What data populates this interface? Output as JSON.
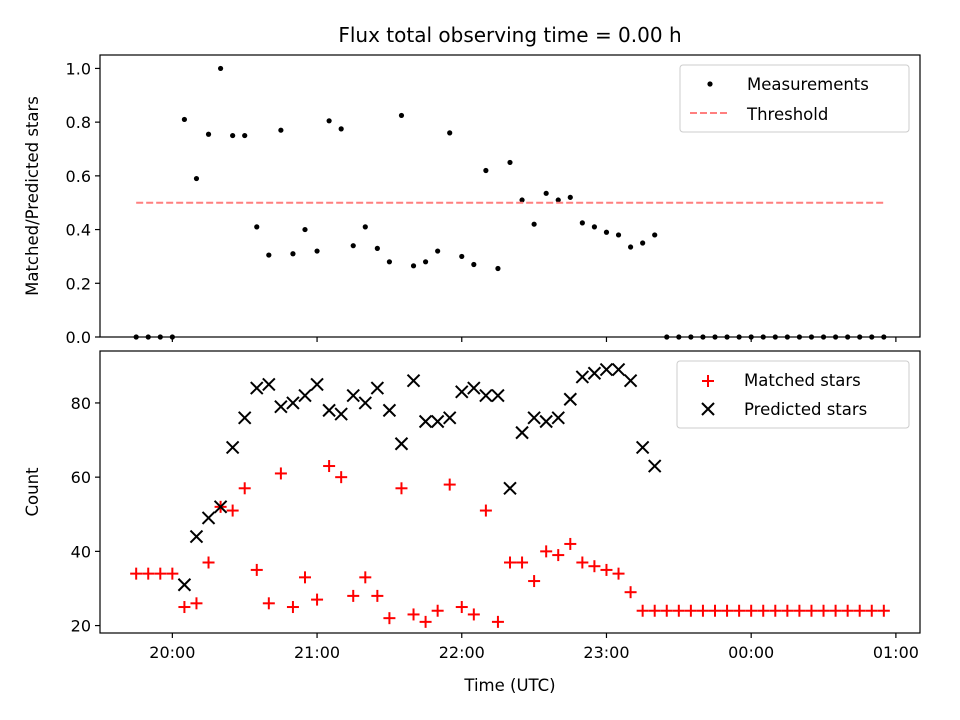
{
  "figure": {
    "title": "Flux total observing time = 0.00 h"
  },
  "chart_data": [
    {
      "type": "scatter",
      "ylabel": "Matched/Predicted stars",
      "xlabel": "",
      "ylim": [
        0.0,
        1.05
      ],
      "yticks": [
        "0.0",
        "0.2",
        "0.4",
        "0.6",
        "0.8",
        "1.0"
      ],
      "ytick_values": [
        0.0,
        0.2,
        0.4,
        0.6,
        0.8,
        1.0
      ],
      "xlim": [
        "19:30",
        "01:10"
      ],
      "xtick_values": [
        "20:00",
        "21:00",
        "22:00",
        "23:00",
        "00:00",
        "01:00"
      ],
      "xtick_labels_shown": false,
      "legend": {
        "placement": "top-right",
        "entries": [
          "Measurements",
          "Threshold"
        ]
      },
      "series": [
        {
          "name": "Measurements",
          "style": "dots",
          "color": "#000000",
          "points": [
            [
              "19:45",
              0.0
            ],
            [
              "19:50",
              0.0
            ],
            [
              "19:55",
              0.0
            ],
            [
              "20:00",
              0.0
            ],
            [
              "20:05",
              0.81
            ],
            [
              "20:10",
              0.59
            ],
            [
              "20:15",
              0.755
            ],
            [
              "20:20",
              1.0
            ],
            [
              "20:25",
              0.75
            ],
            [
              "20:30",
              0.75
            ],
            [
              "20:35",
              0.41
            ],
            [
              "20:40",
              0.305
            ],
            [
              "20:45",
              0.77
            ],
            [
              "20:50",
              0.31
            ],
            [
              "20:55",
              0.4
            ],
            [
              "21:00",
              0.32
            ],
            [
              "21:05",
              0.805
            ],
            [
              "21:10",
              0.775
            ],
            [
              "21:15",
              0.34
            ],
            [
              "21:20",
              0.41
            ],
            [
              "21:25",
              0.33
            ],
            [
              "21:30",
              0.28
            ],
            [
              "21:35",
              0.825
            ],
            [
              "21:40",
              0.265
            ],
            [
              "21:45",
              0.28
            ],
            [
              "21:50",
              0.32
            ],
            [
              "21:55",
              0.76
            ],
            [
              "22:00",
              0.3
            ],
            [
              "22:05",
              0.27
            ],
            [
              "22:10",
              0.62
            ],
            [
              "22:15",
              0.255
            ],
            [
              "22:20",
              0.65
            ],
            [
              "22:25",
              0.51
            ],
            [
              "22:30",
              0.42
            ],
            [
              "22:35",
              0.535
            ],
            [
              "22:40",
              0.51
            ],
            [
              "22:45",
              0.52
            ],
            [
              "22:50",
              0.425
            ],
            [
              "22:55",
              0.41
            ],
            [
              "23:00",
              0.39
            ],
            [
              "23:05",
              0.38
            ],
            [
              "23:10",
              0.335
            ],
            [
              "23:15",
              0.35
            ],
            [
              "23:20",
              0.38
            ],
            [
              "23:25",
              0.0
            ],
            [
              "23:30",
              0.0
            ],
            [
              "23:35",
              0.0
            ],
            [
              "23:40",
              0.0
            ],
            [
              "23:45",
              0.0
            ],
            [
              "23:50",
              0.0
            ],
            [
              "23:55",
              0.0
            ],
            [
              "00:00",
              0.0
            ],
            [
              "00:05",
              0.0
            ],
            [
              "00:10",
              0.0
            ],
            [
              "00:15",
              0.0
            ],
            [
              "00:20",
              0.0
            ],
            [
              "00:25",
              0.0
            ],
            [
              "00:30",
              0.0
            ],
            [
              "00:35",
              0.0
            ],
            [
              "00:40",
              0.0
            ],
            [
              "00:45",
              0.0
            ],
            [
              "00:50",
              0.0
            ],
            [
              "00:55",
              0.0
            ]
          ]
        },
        {
          "name": "Threshold",
          "style": "dashed-line",
          "color": "#ff7f7f",
          "points": [
            [
              "19:45",
              0.5
            ],
            [
              "00:55",
              0.5
            ]
          ]
        }
      ]
    },
    {
      "type": "scatter",
      "ylabel": "Count",
      "xlabel": "Time (UTC)",
      "ylim": [
        18,
        94
      ],
      "yticks": [
        "20",
        "40",
        "60",
        "80"
      ],
      "ytick_values": [
        20,
        40,
        60,
        80
      ],
      "xlim": [
        "19:30",
        "01:10"
      ],
      "xticks": [
        "20:00",
        "21:00",
        "22:00",
        "23:00",
        "00:00",
        "01:00"
      ],
      "xtick_values": [
        "20:00",
        "21:00",
        "22:00",
        "23:00",
        "00:00",
        "01:00"
      ],
      "legend": {
        "placement": "top-right",
        "entries": [
          "Matched stars",
          "Predicted stars"
        ]
      },
      "series": [
        {
          "name": "Matched stars",
          "style": "plus",
          "color": "#ff0000",
          "points": [
            [
              "19:45",
              34
            ],
            [
              "19:50",
              34
            ],
            [
              "19:55",
              34
            ],
            [
              "20:00",
              34
            ],
            [
              "20:05",
              25
            ],
            [
              "20:10",
              26
            ],
            [
              "20:15",
              37
            ],
            [
              "20:20",
              52
            ],
            [
              "20:25",
              51
            ],
            [
              "20:30",
              57
            ],
            [
              "20:35",
              35
            ],
            [
              "20:40",
              26
            ],
            [
              "20:45",
              61
            ],
            [
              "20:50",
              25
            ],
            [
              "20:55",
              33
            ],
            [
              "21:00",
              27
            ],
            [
              "21:05",
              63
            ],
            [
              "21:10",
              60
            ],
            [
              "21:15",
              28
            ],
            [
              "21:20",
              33
            ],
            [
              "21:25",
              28
            ],
            [
              "21:30",
              22
            ],
            [
              "21:35",
              57
            ],
            [
              "21:40",
              23
            ],
            [
              "21:45",
              21
            ],
            [
              "21:50",
              24
            ],
            [
              "21:55",
              58
            ],
            [
              "22:00",
              25
            ],
            [
              "22:05",
              23
            ],
            [
              "22:10",
              51
            ],
            [
              "22:15",
              21
            ],
            [
              "22:20",
              37
            ],
            [
              "22:25",
              37
            ],
            [
              "22:30",
              32
            ],
            [
              "22:35",
              40
            ],
            [
              "22:40",
              39
            ],
            [
              "22:45",
              42
            ],
            [
              "22:50",
              37
            ],
            [
              "22:55",
              36
            ],
            [
              "23:00",
              35
            ],
            [
              "23:05",
              34
            ],
            [
              "23:10",
              29
            ],
            [
              "23:15",
              24
            ],
            [
              "23:20",
              24
            ],
            [
              "23:25",
              24
            ],
            [
              "23:30",
              24
            ],
            [
              "23:35",
              24
            ],
            [
              "23:40",
              24
            ],
            [
              "23:45",
              24
            ],
            [
              "23:50",
              24
            ],
            [
              "23:55",
              24
            ],
            [
              "00:00",
              24
            ],
            [
              "00:05",
              24
            ],
            [
              "00:10",
              24
            ],
            [
              "00:15",
              24
            ],
            [
              "00:20",
              24
            ],
            [
              "00:25",
              24
            ],
            [
              "00:30",
              24
            ],
            [
              "00:35",
              24
            ],
            [
              "00:40",
              24
            ],
            [
              "00:45",
              24
            ],
            [
              "00:50",
              24
            ],
            [
              "00:55",
              24
            ]
          ]
        },
        {
          "name": "Predicted stars",
          "style": "x",
          "color": "#000000",
          "points": [
            [
              "20:05",
              31
            ],
            [
              "20:10",
              44
            ],
            [
              "20:15",
              49
            ],
            [
              "20:20",
              52
            ],
            [
              "20:25",
              68
            ],
            [
              "20:30",
              76
            ],
            [
              "20:35",
              84
            ],
            [
              "20:40",
              85
            ],
            [
              "20:45",
              79
            ],
            [
              "20:50",
              80
            ],
            [
              "20:55",
              82
            ],
            [
              "21:00",
              85
            ],
            [
              "21:05",
              78
            ],
            [
              "21:10",
              77
            ],
            [
              "21:15",
              82
            ],
            [
              "21:20",
              80
            ],
            [
              "21:25",
              84
            ],
            [
              "21:30",
              78
            ],
            [
              "21:35",
              69
            ],
            [
              "21:40",
              86
            ],
            [
              "21:45",
              75
            ],
            [
              "21:50",
              75
            ],
            [
              "21:55",
              76
            ],
            [
              "22:00",
              83
            ],
            [
              "22:05",
              84
            ],
            [
              "22:10",
              82
            ],
            [
              "22:15",
              82
            ],
            [
              "22:20",
              57
            ],
            [
              "22:25",
              72
            ],
            [
              "22:30",
              76
            ],
            [
              "22:35",
              75
            ],
            [
              "22:40",
              76
            ],
            [
              "22:45",
              81
            ],
            [
              "22:50",
              87
            ],
            [
              "22:55",
              88
            ],
            [
              "23:00",
              89
            ],
            [
              "23:05",
              89
            ],
            [
              "23:10",
              86
            ],
            [
              "23:15",
              68
            ],
            [
              "23:20",
              63
            ]
          ]
        }
      ]
    }
  ]
}
